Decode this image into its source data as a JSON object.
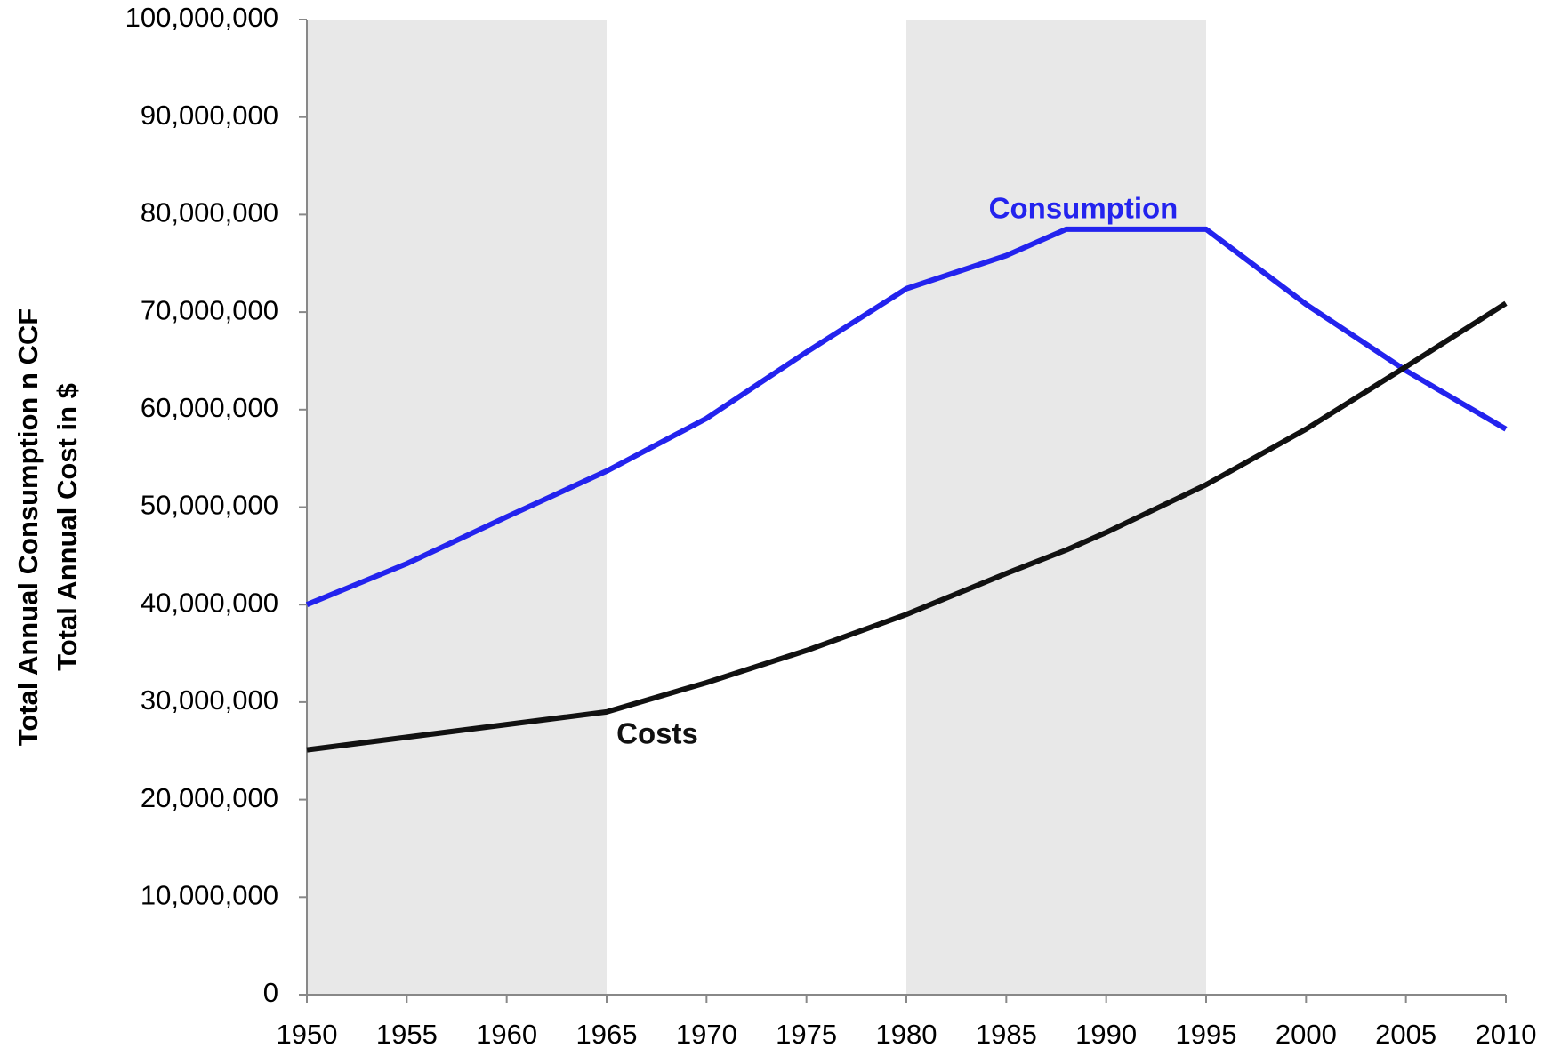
{
  "chart_data": {
    "type": "line",
    "ylabel": [
      "Total Annual Consumption n CCF",
      "Total Annual Cost in $"
    ],
    "x": [
      1950,
      1955,
      1960,
      1965,
      1970,
      1975,
      1980,
      1985,
      1988,
      1990,
      1995,
      2000,
      2005,
      2010
    ],
    "series": [
      {
        "name": "Consumption",
        "color": "#2323ee",
        "values": [
          40000000,
          44200000,
          49000000,
          53700000,
          59100000,
          65900000,
          72400000,
          75800000,
          78500000,
          78500000,
          78500000,
          70800000,
          64000000,
          58000000
        ]
      },
      {
        "name": "Costs",
        "color": "#111111",
        "values": [
          25100000,
          26400000,
          27700000,
          29000000,
          32000000,
          35300000,
          39000000,
          43200000,
          45600000,
          47400000,
          52300000,
          58000000,
          64400000,
          70900000
        ]
      }
    ],
    "bands": [
      [
        1950,
        1965
      ],
      [
        1980,
        1995
      ]
    ],
    "xlim": [
      1950,
      2010
    ],
    "xticks": [
      1950,
      1955,
      1960,
      1965,
      1970,
      1975,
      1980,
      1985,
      1990,
      1995,
      2000,
      2005,
      2010
    ],
    "ylim": [
      0,
      100000000
    ],
    "yticks": [
      0,
      {
        "value": 10000000,
        "label": "10,000,000"
      },
      {
        "value": 20000000,
        "label": "20,000,000"
      },
      {
        "value": 30000000,
        "label": "30,000,000"
      },
      {
        "value": 40000000,
        "label": "40,000,000"
      },
      {
        "value": 50000000,
        "label": "50,000,000"
      },
      {
        "value": 60000000,
        "label": "60,000,000"
      },
      {
        "value": 70000000,
        "label": "70,000,000"
      },
      {
        "value": 80000000,
        "label": "80,000,000"
      },
      {
        "value": 90000000,
        "label": "90,000,000"
      },
      {
        "value": 100000000,
        "label": "100,000,000"
      }
    ],
    "grid": false
  }
}
